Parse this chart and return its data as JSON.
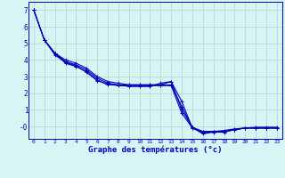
{
  "title": "Graphe des températures (°c)",
  "background_color": "#d8f5f5",
  "grid_color": "#b8d0d0",
  "line_color": "#0000bb",
  "xlim": [
    -0.5,
    23.5
  ],
  "ylim": [
    -0.75,
    7.5
  ],
  "yticks": [
    0,
    1,
    2,
    3,
    4,
    5,
    6,
    7
  ],
  "ytick_labels": [
    "-0",
    "1",
    "2",
    "3",
    "4",
    "5",
    "6",
    "7"
  ],
  "xticks": [
    0,
    1,
    2,
    3,
    4,
    5,
    6,
    7,
    8,
    9,
    10,
    11,
    12,
    13,
    14,
    15,
    16,
    17,
    18,
    19,
    20,
    21,
    22,
    23
  ],
  "series": [
    {
      "x": [
        0,
        1,
        2,
        3,
        4,
        5,
        6,
        7,
        8,
        9,
        10,
        11,
        12,
        13,
        14,
        15,
        16,
        17,
        18,
        19,
        20,
        21,
        22,
        23
      ],
      "y": [
        7.0,
        5.2,
        4.4,
        4.0,
        3.8,
        3.5,
        3.0,
        2.7,
        2.6,
        2.5,
        2.5,
        2.5,
        2.5,
        2.7,
        1.5,
        -0.1,
        -0.4,
        -0.3,
        -0.3,
        -0.2,
        -0.1,
        -0.1,
        -0.1,
        -0.1
      ]
    },
    {
      "x": [
        0,
        1,
        2,
        3,
        4,
        5,
        6,
        7,
        8,
        9,
        10,
        11,
        12,
        13,
        14,
        15,
        16,
        17,
        18,
        19,
        20,
        21,
        22,
        23
      ],
      "y": [
        7.0,
        5.2,
        4.4,
        3.9,
        3.7,
        3.4,
        2.9,
        2.6,
        2.5,
        2.5,
        2.5,
        2.5,
        2.5,
        2.5,
        1.2,
        -0.05,
        -0.3,
        -0.3,
        -0.3,
        -0.2,
        -0.1,
        -0.1,
        -0.1,
        -0.1
      ]
    },
    {
      "x": [
        1,
        2,
        3,
        4,
        5,
        6,
        7,
        8,
        9,
        10,
        11,
        12,
        13,
        14,
        15,
        16,
        17,
        18,
        19,
        20,
        21,
        22,
        23
      ],
      "y": [
        5.2,
        4.4,
        3.8,
        3.6,
        3.3,
        2.8,
        2.5,
        2.5,
        2.4,
        2.4,
        2.4,
        2.6,
        2.7,
        1.0,
        -0.05,
        -0.45,
        -0.35,
        -0.35,
        -0.2,
        -0.1,
        -0.1,
        -0.1,
        -0.1
      ]
    },
    {
      "x": [
        0,
        1,
        2,
        3,
        4,
        5,
        6,
        7,
        8,
        9,
        10,
        11,
        12,
        13,
        14,
        15,
        16,
        17,
        18,
        19,
        20,
        21,
        22,
        23
      ],
      "y": [
        7.0,
        5.2,
        4.3,
        3.85,
        3.65,
        3.25,
        2.75,
        2.55,
        2.45,
        2.45,
        2.45,
        2.45,
        2.45,
        2.45,
        0.8,
        -0.1,
        -0.35,
        -0.3,
        -0.25,
        -0.15,
        -0.1,
        -0.05,
        -0.05,
        -0.05
      ]
    }
  ]
}
